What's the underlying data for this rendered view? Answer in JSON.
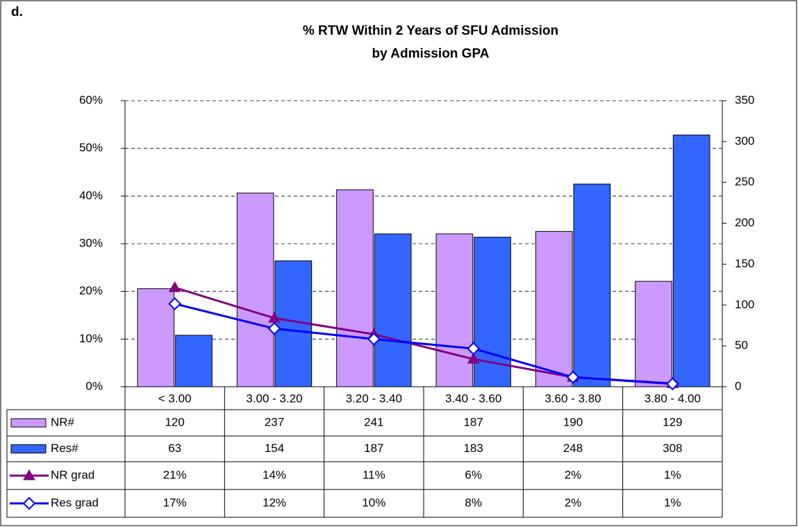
{
  "chart_data": {
    "type": "combo",
    "panel_label": "d.",
    "title": [
      "% RTW Within 2 Years of SFU Admission",
      "by Admission GPA"
    ],
    "categories": [
      "< 3.00",
      "3.00 - 3.20",
      "3.20 - 3.40",
      "3.40 - 3.60",
      "3.60 - 3.80",
      "3.80 - 4.00"
    ],
    "series": [
      {
        "name": "NR#",
        "type": "bar",
        "axis": "y2",
        "color": "#cc99ff",
        "values": [
          120,
          237,
          241,
          187,
          190,
          129
        ]
      },
      {
        "name": "Res#",
        "type": "bar",
        "axis": "y2",
        "color": "#3366ff",
        "values": [
          63,
          154,
          187,
          183,
          248,
          308
        ]
      },
      {
        "name": "NR grad",
        "type": "line",
        "marker": "triangle",
        "color": "#800080",
        "values": [
          20.8,
          14.4,
          11.0,
          5.8,
          2.0,
          0.7
        ],
        "value_labels": [
          "21%",
          "14%",
          "11%",
          "6%",
          "2%",
          "1%"
        ]
      },
      {
        "name": "Res grad",
        "type": "line",
        "marker": "diamond",
        "color": "#0000ff",
        "values": [
          17.4,
          12.2,
          10.0,
          8.0,
          2.0,
          0.6
        ],
        "value_labels": [
          "17%",
          "12%",
          "10%",
          "8%",
          "2%",
          "1%"
        ]
      }
    ],
    "ylim": [
      0,
      60
    ],
    "yticks": [
      {
        "value": 0,
        "label": "0%"
      },
      {
        "value": 10,
        "label": "10%"
      },
      {
        "value": 20,
        "label": "20%"
      },
      {
        "value": 30,
        "label": "30%"
      },
      {
        "value": 40,
        "label": "40%"
      },
      {
        "value": 50,
        "label": "50%"
      },
      {
        "value": 60,
        "label": "60%"
      }
    ],
    "y2lim": [
      0,
      350
    ],
    "y2ticks": [
      0,
      50,
      100,
      150,
      200,
      250,
      300,
      350
    ],
    "grid": true
  }
}
